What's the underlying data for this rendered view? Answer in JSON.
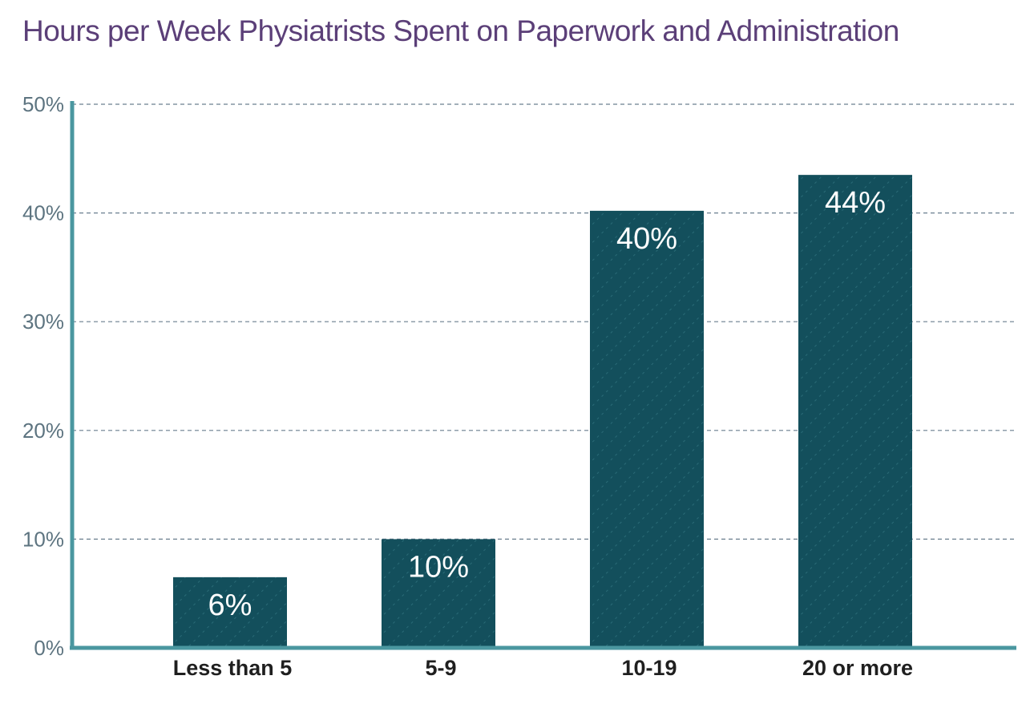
{
  "chart_data": {
    "type": "bar",
    "title": "Hours per Week Physiatrists Spent on Paperwork and Administration",
    "xlabel": "",
    "ylabel": "",
    "categories": [
      "Less than 5",
      "5-9",
      "10-19",
      "20 or more"
    ],
    "values": [
      6.5,
      10,
      40.2,
      43.5
    ],
    "data_labels": [
      "6%",
      "10%",
      "40%",
      "44%"
    ],
    "ylim": [
      0,
      50
    ],
    "yticks": [
      0,
      10,
      20,
      30,
      40,
      50
    ],
    "ytick_labels": [
      "0%",
      "10%",
      "20%",
      "30%",
      "40%",
      "50%"
    ],
    "grid": true,
    "colors": {
      "bar": "#134f5c",
      "axis": "#4a97a0",
      "grid": "#6a7f8f",
      "title": "#5b3f78"
    }
  }
}
